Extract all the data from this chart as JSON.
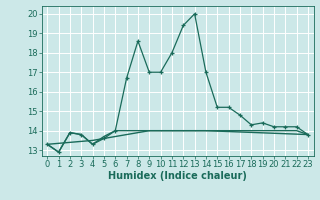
{
  "title": "",
  "xlabel": "Humidex (Indice chaleur)",
  "background_color": "#cce8e8",
  "grid_color": "#ffffff",
  "line_color": "#1a6b5a",
  "xlim": [
    -0.5,
    23.5
  ],
  "ylim": [
    12.7,
    20.4
  ],
  "yticks": [
    13,
    14,
    15,
    16,
    17,
    18,
    19,
    20
  ],
  "xticks": [
    0,
    1,
    2,
    3,
    4,
    5,
    6,
    7,
    8,
    9,
    10,
    11,
    12,
    13,
    14,
    15,
    16,
    17,
    18,
    19,
    20,
    21,
    22,
    23
  ],
  "series1_x": [
    0,
    1,
    2,
    3,
    4,
    5,
    6,
    7,
    8,
    9,
    10,
    11,
    12,
    13,
    14,
    15,
    16,
    17,
    18,
    19,
    20,
    21,
    22,
    23
  ],
  "series1_y": [
    13.3,
    12.9,
    13.9,
    13.8,
    13.3,
    13.6,
    14.0,
    16.7,
    18.6,
    17.0,
    17.0,
    18.0,
    19.4,
    20.0,
    17.0,
    15.2,
    15.2,
    14.8,
    14.3,
    14.4,
    14.2,
    14.2,
    14.2,
    13.8
  ],
  "series2_x": [
    0,
    1,
    2,
    3,
    4,
    5,
    6,
    7,
    8,
    9,
    10,
    11,
    12,
    13,
    14,
    15,
    16,
    17,
    18,
    19,
    20,
    21,
    22,
    23
  ],
  "series2_y": [
    13.3,
    12.9,
    13.9,
    13.8,
    13.3,
    13.7,
    14.0,
    14.0,
    14.0,
    14.0,
    14.0,
    14.0,
    14.0,
    14.0,
    14.0,
    14.0,
    14.0,
    14.0,
    14.0,
    14.0,
    14.0,
    14.0,
    14.0,
    13.8
  ],
  "series3_x": [
    0,
    4,
    9,
    14,
    23
  ],
  "series3_y": [
    13.3,
    13.5,
    14.0,
    14.0,
    13.8
  ],
  "xlabel_fontsize": 7,
  "tick_fontsize": 6
}
